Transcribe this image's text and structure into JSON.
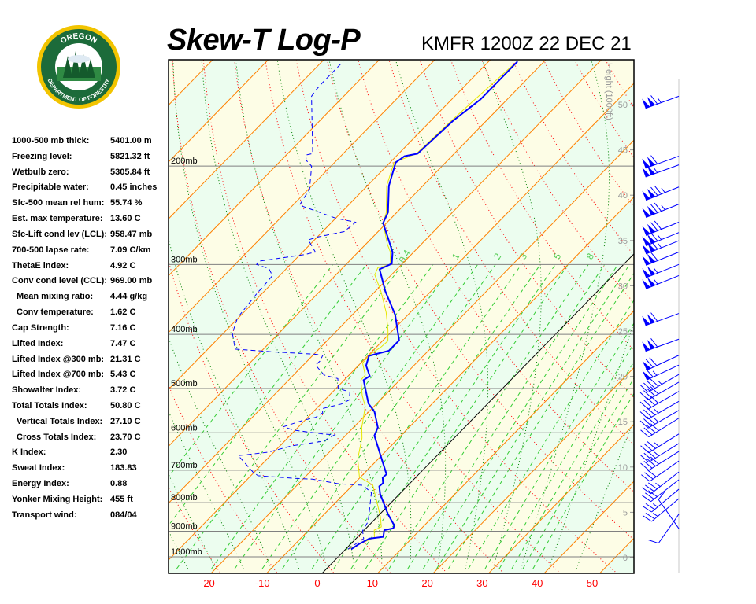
{
  "header": {
    "title": "Skew-T Log-P",
    "station": "KMFR 1200Z 22 DEC 21"
  },
  "logo": {
    "text_top": "OREGON",
    "text_bottom": "DEPARTMENT OF FORESTRY"
  },
  "indices": [
    {
      "label": "1000-500 mb thick:",
      "value": "5401.00 m"
    },
    {
      "label": "Freezing level:",
      "value": "5821.32 ft"
    },
    {
      "label": "Wetbulb zero:",
      "value": "5305.84 ft"
    },
    {
      "label": "Precipitable water:",
      "value": "0.45 inches"
    },
    {
      "label": "Sfc-500 mean rel hum:",
      "value": "55.74 %"
    },
    {
      "label": "Est. max temperature:",
      "value": "13.60 C"
    },
    {
      "label": "Sfc-Lift cond lev (LCL):",
      "value": "958.47 mb"
    },
    {
      "label": "700-500 lapse rate:",
      "value": "7.09 C/km"
    },
    {
      "label": "ThetaE index:",
      "value": "4.92 C"
    },
    {
      "label": "Conv cond level (CCL):",
      "value": "969.00 mb"
    },
    {
      "label": "Mean mixing ratio:",
      "value": "4.44 g/kg",
      "sub": true
    },
    {
      "label": "Conv temperature:",
      "value": "1.62 C",
      "sub": true
    },
    {
      "label": "Cap Strength:",
      "value": "7.16 C"
    },
    {
      "label": "Lifted Index:",
      "value": "7.47 C"
    },
    {
      "label": "Lifted Index @300 mb:",
      "value": "21.31 C"
    },
    {
      "label": "Lifted Index @700 mb:",
      "value": "5.43 C"
    },
    {
      "label": "Showalter Index:",
      "value": "3.72 C"
    },
    {
      "label": "Total Totals Index:",
      "value": "50.80 C"
    },
    {
      "label": "Vertical Totals Index:",
      "value": "27.10 C",
      "sub": true
    },
    {
      "label": "Cross Totals Index:",
      "value": "23.70 C",
      "sub": true
    },
    {
      "label": "K Index:",
      "value": "2.30"
    },
    {
      "label": "Sweat Index:",
      "value": "183.83"
    },
    {
      "label": "Energy Index:",
      "value": "0.88"
    },
    {
      "label": "Yonker Mixing Height:",
      "value": "455 ft"
    },
    {
      "label": "Transport wind:",
      "value": "084/04"
    }
  ],
  "chart_data": {
    "type": "skew-t",
    "x_ticks": [
      -20,
      -10,
      0,
      10,
      20,
      30,
      40,
      50
    ],
    "pressure_range_mb": [
      1050,
      130
    ],
    "pressure_levels": [
      {
        "p": 200,
        "label": "200mb"
      },
      {
        "p": 300,
        "label": "300mb"
      },
      {
        "p": 400,
        "label": "400mb"
      },
      {
        "p": 500,
        "label": "500mb"
      },
      {
        "p": 600,
        "label": "600mb"
      },
      {
        "p": 700,
        "label": "700mb"
      },
      {
        "p": 800,
        "label": "800mb"
      },
      {
        "p": 900,
        "label": "900mb"
      },
      {
        "p": 1000,
        "label": "1000mb"
      }
    ],
    "height_axis": {
      "label": "Height (1000ft)",
      "ticks": [
        0,
        5,
        10,
        15,
        20,
        25,
        30,
        35,
        40,
        45,
        50
      ]
    },
    "mixing_ratio_labels": [
      "0.4",
      "1",
      "2",
      "3",
      "5",
      "8"
    ],
    "temperature": [
      [
        969,
        1.0
      ],
      [
        949,
        1.5
      ],
      [
        928,
        2.4
      ],
      [
        921,
        4.6
      ],
      [
        896,
        3.6
      ],
      [
        889,
        4.9
      ],
      [
        879,
        4.6
      ],
      [
        838,
        1.4
      ],
      [
        772,
        -3.5
      ],
      [
        748,
        -5.0
      ],
      [
        738,
        -4.9
      ],
      [
        722,
        -5.9
      ],
      [
        712,
        -5.8
      ],
      [
        654,
        -10.6
      ],
      [
        607,
        -14.8
      ],
      [
        587,
        -15.6
      ],
      [
        550,
        -19.0
      ],
      [
        532,
        -21.5
      ],
      [
        483,
        -26.5
      ],
      [
        475,
        -26.1
      ],
      [
        455,
        -28.6
      ],
      [
        437,
        -29.8
      ],
      [
        428,
        -27.1
      ],
      [
        410,
        -27.1
      ],
      [
        369,
        -32.3
      ],
      [
        335,
        -38.2
      ],
      [
        306,
        -43.1
      ],
      [
        299,
        -41.9
      ],
      [
        285,
        -43.8
      ],
      [
        267,
        -47.5
      ],
      [
        253,
        -50.6
      ],
      [
        242,
        -51.6
      ],
      [
        217,
        -56.1
      ],
      [
        197,
        -59.0
      ],
      [
        192,
        -58.5
      ],
      [
        190,
        -56.6
      ],
      [
        166,
        -56.0
      ],
      [
        152,
        -54.8
      ],
      [
        130,
        -54.8
      ]
    ],
    "dewpoint": [
      [
        969,
        0.4
      ],
      [
        928,
        1.4
      ],
      [
        898,
        -0.2
      ],
      [
        865,
        -0.8
      ],
      [
        768,
        -5.3
      ],
      [
        745,
        -8.1
      ],
      [
        740,
        -12.9
      ],
      [
        726,
        -18.3
      ],
      [
        724,
        -21.5
      ],
      [
        716,
        -28.7
      ],
      [
        705,
        -30.3
      ],
      [
        659,
        -35.8
      ],
      [
        650,
        -31.0
      ],
      [
        633,
        -27.8
      ],
      [
        621,
        -22.9
      ],
      [
        605,
        -22.1
      ],
      [
        603,
        -24.4
      ],
      [
        593,
        -30.5
      ],
      [
        585,
        -32.7
      ],
      [
        571,
        -30.5
      ],
      [
        563,
        -28.6
      ],
      [
        553,
        -28.1
      ],
      [
        543,
        -28.9
      ],
      [
        533,
        -26.3
      ],
      [
        524,
        -25.6
      ],
      [
        507,
        -26.9
      ],
      [
        500,
        -29.6
      ],
      [
        480,
        -31.4
      ],
      [
        473,
        -34.5
      ],
      [
        454,
        -37.8
      ],
      [
        447,
        -37.7
      ],
      [
        436,
        -38.2
      ],
      [
        434,
        -40.0
      ],
      [
        430,
        -47.5
      ],
      [
        425,
        -55.1
      ],
      [
        398,
        -58.4
      ],
      [
        373,
        -60.2
      ],
      [
        363,
        -60.4
      ],
      [
        336,
        -61.0
      ],
      [
        331,
        -61.0
      ],
      [
        314,
        -61.3
      ],
      [
        305,
        -63.2
      ],
      [
        300,
        -66.1
      ],
      [
        296,
        -66.3
      ],
      [
        288,
        -59.2
      ],
      [
        285,
        -57.7
      ],
      [
        276,
        -59.9
      ],
      [
        271,
        -61.1
      ],
      [
        268,
        -60.0
      ],
      [
        262,
        -56.1
      ],
      [
        252,
        -55.7
      ],
      [
        248,
        -59.9
      ],
      [
        240,
        -65.3
      ],
      [
        235,
        -68.8
      ],
      [
        229,
        -69.2
      ],
      [
        220,
        -69.8
      ],
      [
        200,
        -73.5
      ],
      [
        195,
        -75.6
      ],
      [
        191,
        -76.4
      ],
      [
        190,
        -75.5
      ],
      [
        150,
        -85.8
      ],
      [
        146,
        -86.1
      ],
      [
        142,
        -86.2
      ],
      [
        130,
        -86.2
      ]
    ],
    "yellow_profile": [
      [
        969,
        0.5
      ],
      [
        923,
        3.1
      ],
      [
        896,
        1.8
      ],
      [
        884,
        2.5
      ],
      [
        847,
        0.5
      ],
      [
        802,
        -2.4
      ],
      [
        744,
        -6.4
      ],
      [
        720,
        -10.2
      ],
      [
        668,
        -13.7
      ],
      [
        613,
        -16.6
      ],
      [
        587,
        -18.5
      ],
      [
        538,
        -21.6
      ],
      [
        515,
        -24.0
      ],
      [
        483,
        -27.0
      ],
      [
        473,
        -27.1
      ],
      [
        450,
        -29.7
      ],
      [
        433,
        -29.8
      ],
      [
        422,
        -29.2
      ],
      [
        411,
        -29.0
      ],
      [
        393,
        -30.9
      ],
      [
        365,
        -34.4
      ],
      [
        335,
        -39.0
      ],
      [
        313,
        -43.0
      ],
      [
        304,
        -43.7
      ],
      [
        300,
        -42.0
      ],
      [
        285,
        -44.2
      ],
      [
        276,
        -46.1
      ],
      [
        253,
        -50.6
      ],
      [
        242,
        -51.9
      ],
      [
        217,
        -56.5
      ],
      [
        197,
        -59.3
      ],
      [
        190,
        -56.8
      ],
      [
        166,
        -56.3
      ],
      [
        132,
        -55.0
      ]
    ],
    "wind_barbs_kt": [
      {
        "p": 150,
        "dir": 250,
        "spd": 115
      },
      {
        "p": 192,
        "dir": 250,
        "spd": 110
      },
      {
        "p": 199,
        "dir": 250,
        "spd": 105
      },
      {
        "p": 218,
        "dir": 248,
        "spd": 125
      },
      {
        "p": 234,
        "dir": 248,
        "spd": 125
      },
      {
        "p": 252,
        "dir": 248,
        "spd": 120
      },
      {
        "p": 263,
        "dir": 248,
        "spd": 115
      },
      {
        "p": 272,
        "dir": 248,
        "spd": 115
      },
      {
        "p": 285,
        "dir": 248,
        "spd": 110
      },
      {
        "p": 300,
        "dir": 248,
        "spd": 105
      },
      {
        "p": 314,
        "dir": 248,
        "spd": 105
      },
      {
        "p": 367,
        "dir": 250,
        "spd": 110
      },
      {
        "p": 408,
        "dir": 250,
        "spd": 110
      },
      {
        "p": 436,
        "dir": 245,
        "spd": 70
      },
      {
        "p": 454,
        "dir": 245,
        "spd": 65
      },
      {
        "p": 472,
        "dir": 240,
        "spd": 45
      },
      {
        "p": 487,
        "dir": 240,
        "spd": 40
      },
      {
        "p": 506,
        "dir": 240,
        "spd": 40
      },
      {
        "p": 527,
        "dir": 240,
        "spd": 35
      },
      {
        "p": 547,
        "dir": 240,
        "spd": 35
      },
      {
        "p": 565,
        "dir": 238,
        "spd": 40
      },
      {
        "p": 603,
        "dir": 238,
        "spd": 35
      },
      {
        "p": 627,
        "dir": 238,
        "spd": 35
      },
      {
        "p": 648,
        "dir": 238,
        "spd": 40
      },
      {
        "p": 674,
        "dir": 235,
        "spd": 30
      },
      {
        "p": 705,
        "dir": 232,
        "spd": 35
      },
      {
        "p": 728,
        "dir": 232,
        "spd": 30
      },
      {
        "p": 757,
        "dir": 230,
        "spd": 25
      },
      {
        "p": 787,
        "dir": 230,
        "spd": 25
      },
      {
        "p": 839,
        "dir": 215,
        "spd": 10
      },
      {
        "p": 890,
        "dir": 325,
        "spd": 10
      }
    ],
    "colors": {
      "temperature": "#0000ff",
      "dewpoint": "#0000ff",
      "yellow_profile": "#e6e600",
      "isotherm": "#ff8000",
      "zero_isotherm": "#000000",
      "dry_adiabat": "#ff0000",
      "moist_adiabat": "#008000",
      "mixing_ratio": "#33cc33",
      "pressure_line": "#808080",
      "band_a": "#fdfde6",
      "band_b": "#ecfdef",
      "x_tick": "#ff0000",
      "height_tick": "#999999",
      "wind": "#0000ff"
    }
  }
}
